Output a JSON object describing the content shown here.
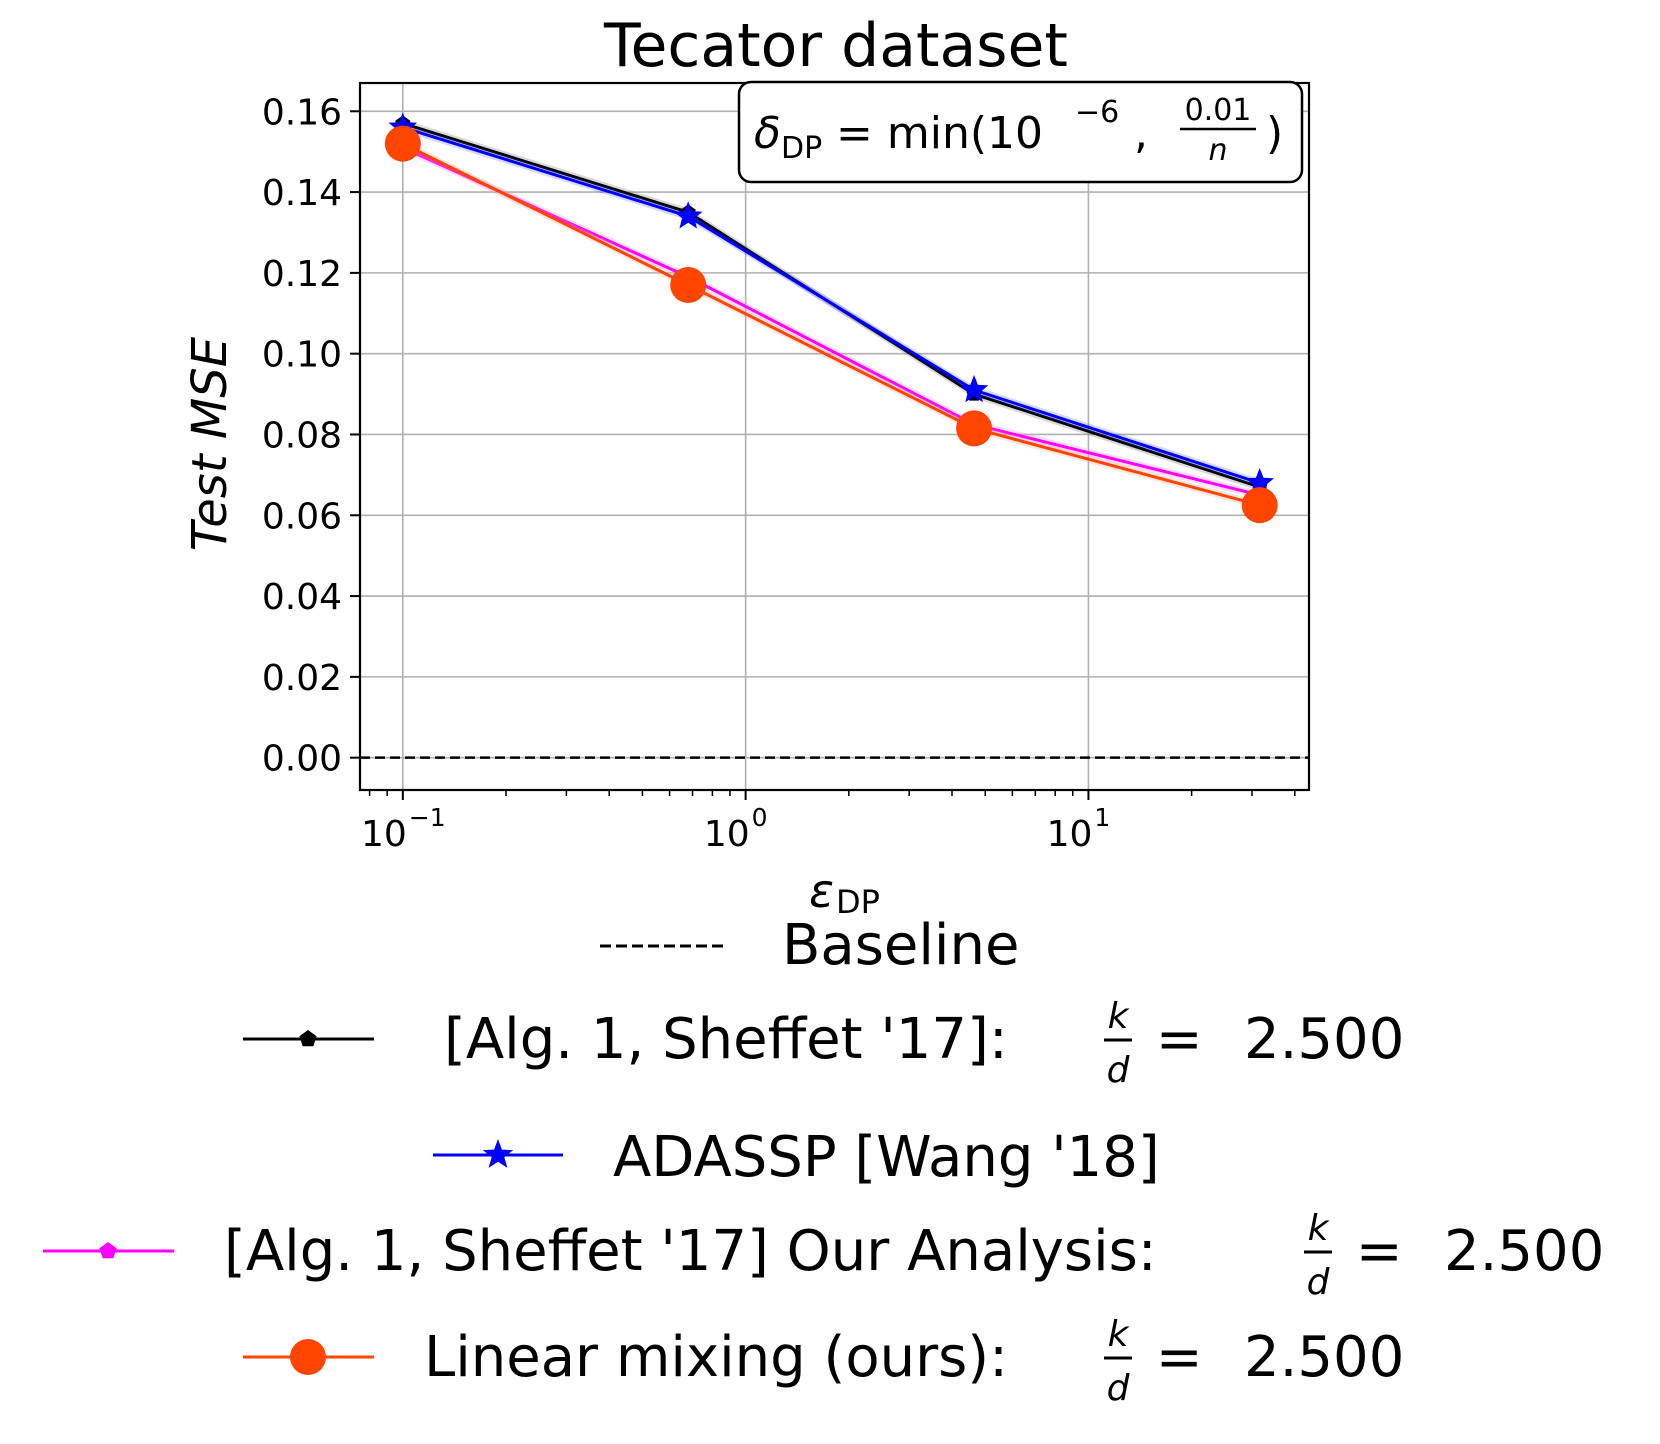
{
  "chart_data": {
    "type": "line",
    "title": "Tecator dataset",
    "xlabel": "ε",
    "xlabel_sub": "DP",
    "ylabel": "Test MSE",
    "x_scale": "log",
    "xlim": [
      0.075,
      44
    ],
    "ylim": [
      -0.008,
      0.167
    ],
    "x_ticks": [
      {
        "value": 0.1,
        "base": "10",
        "exp": "−1"
      },
      {
        "value": 1,
        "base": "10",
        "exp": "0"
      },
      {
        "value": 10,
        "base": "10",
        "exp": "1"
      }
    ],
    "y_ticks": [
      {
        "value": 0.0,
        "label": "0.00"
      },
      {
        "value": 0.02,
        "label": "0.02"
      },
      {
        "value": 0.04,
        "label": "0.04"
      },
      {
        "value": 0.06,
        "label": "0.06"
      },
      {
        "value": 0.08,
        "label": "0.08"
      },
      {
        "value": 0.1,
        "label": "0.10"
      },
      {
        "value": 0.12,
        "label": "0.12"
      },
      {
        "value": 0.14,
        "label": "0.14"
      },
      {
        "value": 0.16,
        "label": "0.16"
      }
    ],
    "grid": true,
    "annotation": {
      "delta": "δ",
      "delta_sub": "DP",
      "eq": " = min(10",
      "exp": "−6",
      "comma": ", ",
      "frac_num": "0.01",
      "frac_den": "n",
      "close": ")"
    },
    "baseline": {
      "label": "Baseline",
      "value": 0.0,
      "color": "#000000"
    },
    "x": [
      0.1,
      0.68,
      4.64,
      31.6
    ],
    "series": [
      {
        "name": "[Alg. 1, Sheffet '17]: ",
        "kd_value": "2.500",
        "color": "#000000",
        "marker": "pentagon-small",
        "values": [
          0.157,
          0.135,
          0.09,
          0.067
        ]
      },
      {
        "name": "ADASSP [Wang '18]",
        "color": "#0000ff",
        "marker": "star",
        "values": [
          0.156,
          0.134,
          0.091,
          0.068
        ]
      },
      {
        "name": "[Alg. 1, Sheffet '17] Our Analysis: ",
        "kd_value": "2.500",
        "color": "#ff00ff",
        "marker": "pentagon-small",
        "values": [
          0.151,
          0.119,
          0.0825,
          0.065
        ]
      },
      {
        "name": "Linear mixing (ours): ",
        "kd_value": "2.500",
        "color": "#ff4500",
        "marker": "circle",
        "values": [
          0.152,
          0.117,
          0.0815,
          0.0625
        ]
      }
    ],
    "legend": {
      "placement": "below",
      "kd_num": "k",
      "kd_den": "d",
      "kd_eq": " =  "
    }
  }
}
